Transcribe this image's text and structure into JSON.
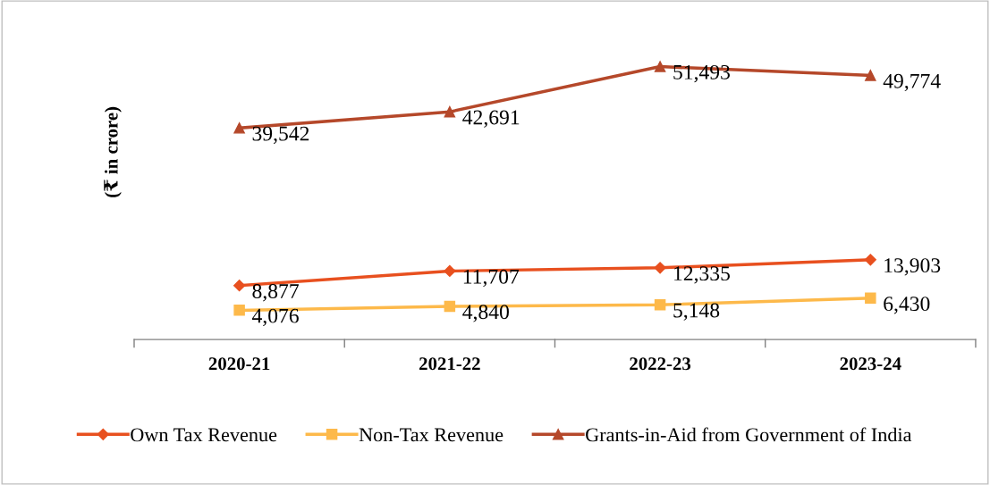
{
  "chart_data": {
    "type": "line",
    "ylabel": "(₹ in crore)",
    "categories": [
      "2020-21",
      "2021-22",
      "2022-23",
      "2023-24"
    ],
    "series": [
      {
        "name": "Own Tax Revenue",
        "color": "#e8501f",
        "values": [
          8877,
          11707,
          12335,
          13903
        ],
        "value_labels": [
          "8,877",
          "11,707",
          "12,335",
          "13,903"
        ],
        "marker": "diamond"
      },
      {
        "name": "Non-Tax Revenue",
        "color": "#fdb94a",
        "values": [
          4076,
          4840,
          5148,
          6430
        ],
        "value_labels": [
          "4,076",
          "4,840",
          "5,148",
          "6,430"
        ],
        "marker": "square"
      },
      {
        "name": "Grants-in-Aid from Government of India",
        "color": "#b5482a",
        "values": [
          39542,
          42691,
          51493,
          49774
        ],
        "value_labels": [
          "39,542",
          "42,691",
          "51,493",
          "49,774"
        ],
        "marker": "triangle"
      }
    ],
    "grid": false,
    "legend": "bottom",
    "line_style": "solid"
  }
}
